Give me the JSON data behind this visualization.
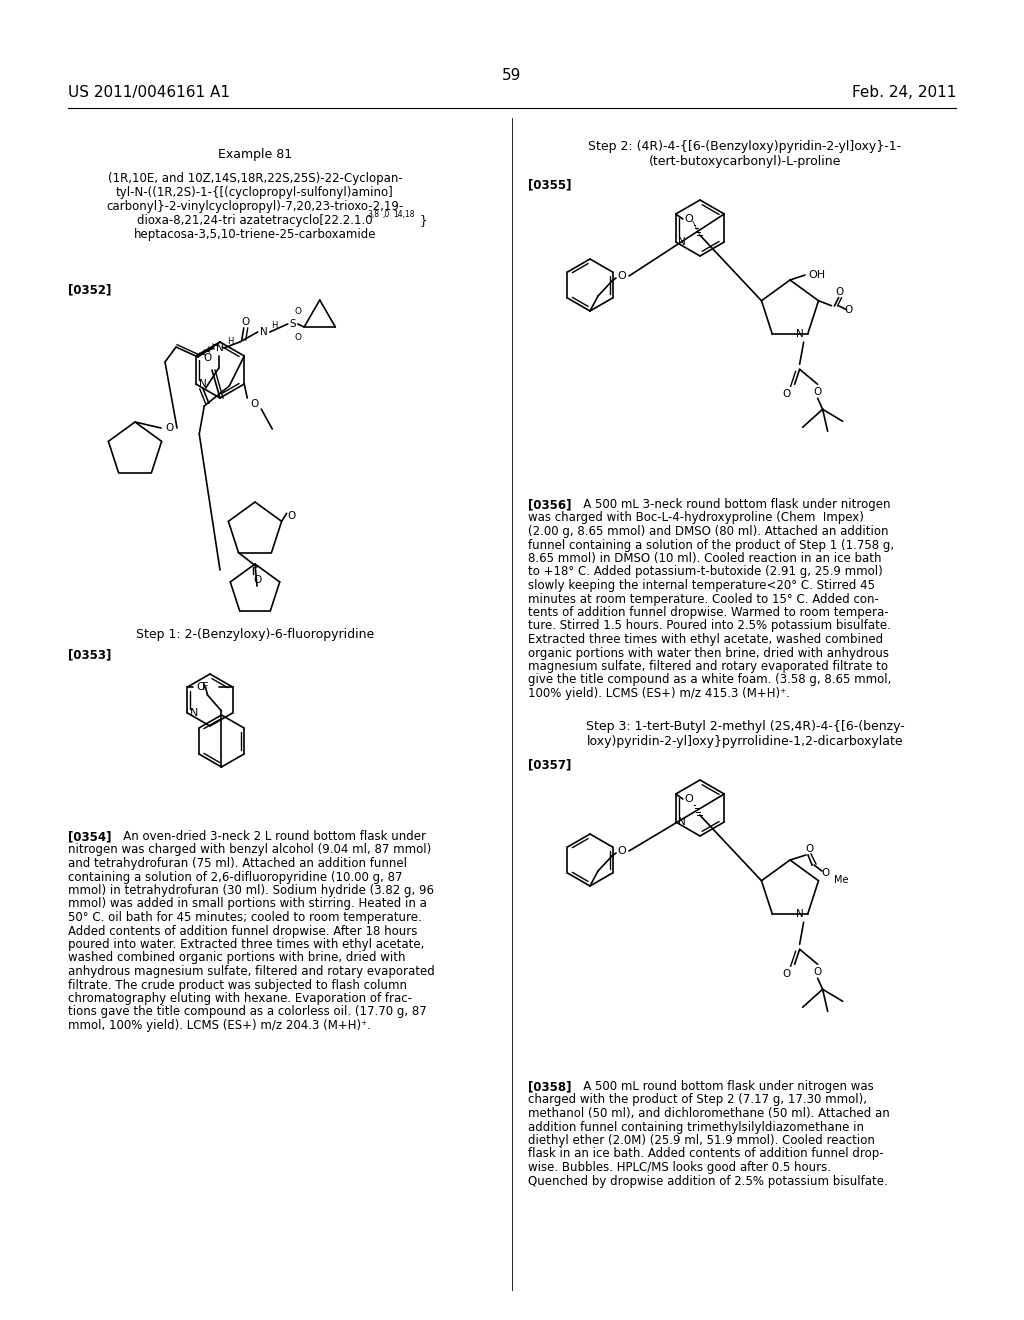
{
  "background_color": "#ffffff",
  "header_left": "US 2011/0046161 A1",
  "header_right": "Feb. 24, 2011",
  "header_center": "59",
  "example_title": "Example 81",
  "compound_name": [
    "(1R,10E, and 10Z,14S,18R,22S,25S)-22-Cyclopan-",
    "tyl-N-((1R,2S)-1-{[(cyclopropyl-sulfonyl)amino]",
    "carbonyl}-2-vinylcyclopropyl)-7,20,23-trioxo-2,19-",
    "dioxa-8,21,24-tri azatetracyclo[22.2.1.0",
    "heptacosa-3,5,10-triene-25-carboxamide"
  ],
  "para_0352": "[0352]",
  "step1_title": "Step 1: 2-(Benzyloxy)-6-fluoropyridine",
  "para_0353": "[0353]",
  "para_0354_lines": [
    "[0354]   An oven-dried 3-neck 2 L round bottom flask under",
    "nitrogen was charged with benzyl alcohol (9.04 ml, 87 mmol)",
    "and tetrahydrofuran (75 ml). Attached an addition funnel",
    "containing a solution of 2,6-difluoropyridine (10.00 g, 87",
    "mmol) in tetrahydrofuran (30 ml). Sodium hydride (3.82 g, 96",
    "mmol) was added in small portions with stirring. Heated in a",
    "50° C. oil bath for 45 minutes; cooled to room temperature.",
    "Added contents of addition funnel dropwise. After 18 hours",
    "poured into water. Extracted three times with ethyl acetate,",
    "washed combined organic portions with brine, dried with",
    "anhydrous magnesium sulfate, filtered and rotary evaporated",
    "filtrate. The crude product was subjected to flash column",
    "chromatography eluting with hexane. Evaporation of frac-",
    "tions gave the title compound as a colorless oil. (17.70 g, 87",
    "mmol, 100% yield). LCMS (ES+) m/z 204.3 (M+H)⁺."
  ],
  "step2_title": [
    "Step 2: (4R)-4-{[6-(Benzyloxy)pyridin-2-yl]oxy}-1-",
    "(tert-butoxycarbonyl)-L-proline"
  ],
  "para_0355": "[0355]",
  "para_0356_lines": [
    "[0356]   A 500 mL 3-neck round bottom flask under nitrogen",
    "was charged with Boc-L-4-hydroxyproline (Chem  Impex)",
    "(2.00 g, 8.65 mmol) and DMSO (80 ml). Attached an addition",
    "funnel containing a solution of the product of Step 1 (1.758 g,",
    "8.65 mmol) in DMSO (10 ml). Cooled reaction in an ice bath",
    "to +18° C. Added potassium-t-butoxide (2.91 g, 25.9 mmol)",
    "slowly keeping the internal temperature<20° C. Stirred 45",
    "minutes at room temperature. Cooled to 15° C. Added con-",
    "tents of addition funnel dropwise. Warmed to room tempera-",
    "ture. Stirred 1.5 hours. Poured into 2.5% potassium bisulfate.",
    "Extracted three times with ethyl acetate, washed combined",
    "organic portions with water then brine, dried with anhydrous",
    "magnesium sulfate, filtered and rotary evaporated filtrate to",
    "give the title compound as a white foam. (3.58 g, 8.65 mmol,",
    "100% yield). LCMS (ES+) m/z 415.3 (M+H)⁺."
  ],
  "step3_title": [
    "Step 3: 1-tert-Butyl 2-methyl (2S,4R)-4-{[6-(benzy-",
    "loxy)pyridin-2-yl]oxy}pyrrolidine-1,2-dicarboxylate"
  ],
  "para_0357": "[0357]",
  "para_0358_lines": [
    "[0358]   A 500 mL round bottom flask under nitrogen was",
    "charged with the product of Step 2 (7.17 g, 17.30 mmol),",
    "methanol (50 ml), and dichloromethane (50 ml). Attached an",
    "addition funnel containing trimethylsilyldiazomethane in",
    "diethyl ether (2.0M) (25.9 ml, 51.9 mmol). Cooled reaction",
    "flask in an ice bath. Added contents of addition funnel drop-",
    "wise. Bubbles. HPLC/MS looks good after 0.5 hours.",
    "Quenched by dropwise addition of 2.5% potassium bisulfate."
  ]
}
